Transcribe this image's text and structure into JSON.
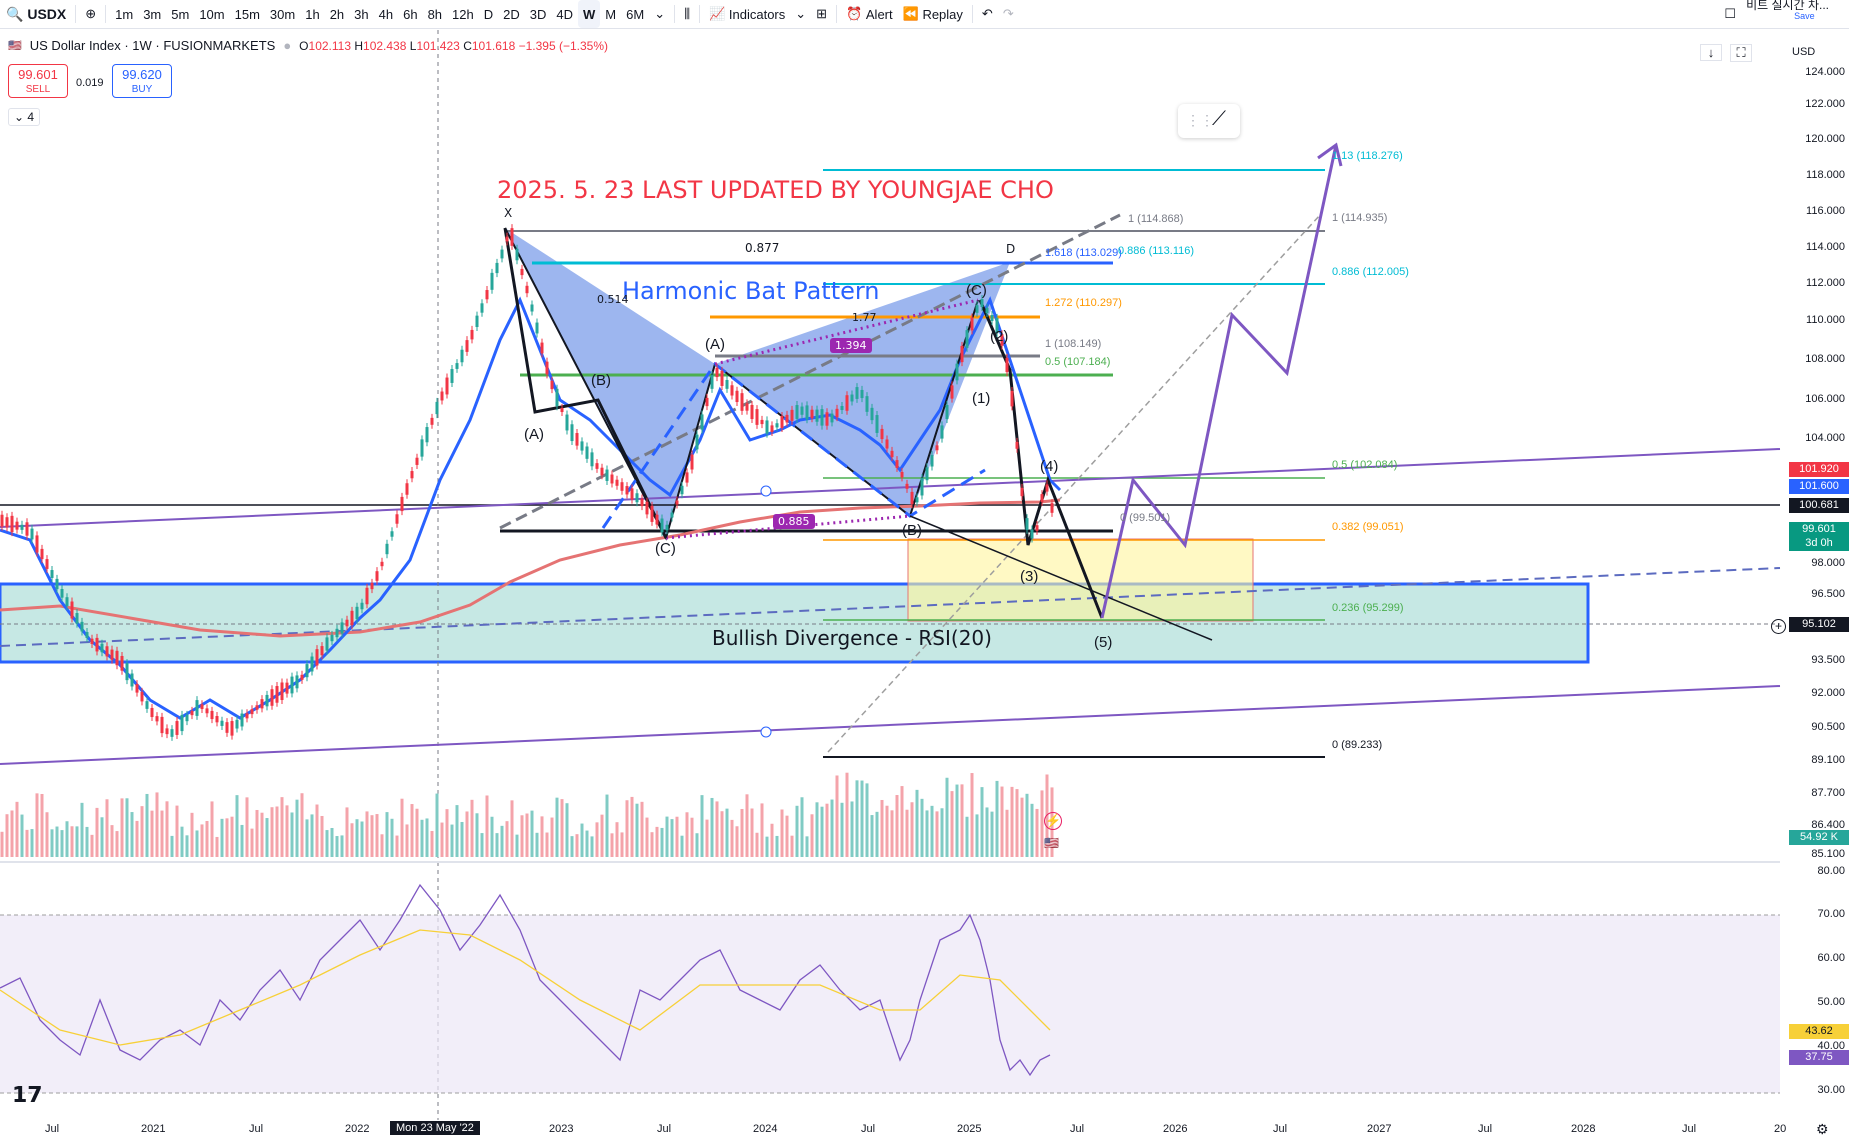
{
  "toolbar": {
    "symbol": "USDX",
    "intervals": [
      "1m",
      "3m",
      "5m",
      "10m",
      "15m",
      "30m",
      "1h",
      "2h",
      "3h",
      "4h",
      "6h",
      "8h",
      "12h",
      "D",
      "2D",
      "3D",
      "4D",
      "W",
      "M",
      "6M"
    ],
    "active_interval": "W",
    "indicators_label": "Indicators",
    "alert_label": "Alert",
    "replay_label": "Replay",
    "korean_label": "비트 실시간 차...",
    "save_label": "Save"
  },
  "legend": {
    "title": "US Dollar Index · 1W · FUSIONMARKETS",
    "o_label": "O",
    "o": "102.113",
    "h_label": "H",
    "h": "102.438",
    "l_label": "L",
    "l": "101.423",
    "c_label": "C",
    "c": "101.618",
    "change": "−1.395 (−1.35%)",
    "sell_price": "99.601",
    "sell_label": "SELL",
    "spread": "0.019",
    "buy_price": "99.620",
    "buy_label": "BUY",
    "collapse_count": "4"
  },
  "currency": "USD",
  "price_axis": [
    "124.000",
    "122.000",
    "120.000",
    "118.000",
    "116.000",
    "114.000",
    "112.000",
    "110.000",
    "108.000",
    "106.000",
    "104.000",
    "98.000",
    "96.500",
    "93.500",
    "92.000",
    "90.500",
    "89.100",
    "87.700",
    "86.400",
    "85.100"
  ],
  "price_tags": [
    {
      "label": "101.920",
      "color": "#f23645"
    },
    {
      "label": "101.600",
      "color": "#2962ff"
    },
    {
      "label": "100.681",
      "color": "#131722"
    },
    {
      "label": "99.601",
      "color": "#089981"
    },
    {
      "label": "3d 0h",
      "color": "#089981"
    },
    {
      "label": "95.102",
      "color": "#131722"
    },
    {
      "label": "54.92 K",
      "color": "#26a69a"
    }
  ],
  "rsi_axis": [
    "80.00",
    "70.00",
    "60.00",
    "50.00",
    "40.00",
    "30.00"
  ],
  "rsi_tags": [
    {
      "label": "43.62",
      "color": "#f7d038"
    },
    {
      "label": "37.75",
      "color": "#7e57c2"
    }
  ],
  "time_axis": [
    "Jul",
    "2021",
    "Jul",
    "2022",
    "Mon 23 May '22",
    "2023",
    "Jul",
    "2024",
    "Jul",
    "2025",
    "Jul",
    "2026",
    "Jul",
    "2027",
    "Jul",
    "2028",
    "Jul",
    "20"
  ],
  "annotations": {
    "headline": "2025. 5. 23 LAST UPDATED BY YOUNGJAE CHO",
    "pattern": "Harmonic Bat Pattern",
    "divergence": "Bullish Divergence - RSI(20)",
    "ratio_877": "0.877",
    "ratio_514": "0.514",
    "ratio_1394": "1.394",
    "ratio_885": "0.885",
    "ratio_177": "1.77",
    "point_x": "X",
    "point_d": "D"
  },
  "fib_levels": [
    {
      "label": "1.13 (118.276)",
      "color": "#00bcd4"
    },
    {
      "label": "1 (114.935)",
      "color": "#787b86"
    },
    {
      "label": "0.886 (112.005)",
      "color": "#00bcd4"
    },
    {
      "label": "0.5 (102.084)",
      "color": "#4caf50"
    },
    {
      "label": "0.382 (99.051)",
      "color": "#ff9800"
    },
    {
      "label": "0.236 (95.299)",
      "color": "#4caf50"
    },
    {
      "label": "0 (89.233)",
      "color": "#131722"
    },
    {
      "label": "1 (114.868)",
      "color": "#787b86"
    },
    {
      "label": "1.618 (113.029)",
      "color": "#2962ff"
    },
    {
      "label": "0.886 (113.116)",
      "color": "#00bcd4"
    },
    {
      "label": "1.272 (110.297)",
      "color": "#ff9800"
    },
    {
      "label": "1 (108.149)",
      "color": "#787b86"
    },
    {
      "label": "0.5 (107.184)",
      "color": "#4caf50"
    },
    {
      "label": "0 (99.501)",
      "color": "#787b86"
    }
  ],
  "waves": [
    "(A)",
    "(B)",
    "(A)",
    "(B)",
    "(C)",
    "(C)",
    "(1)",
    "(2)",
    "(3)",
    "(4)",
    "(5)"
  ],
  "colors": {
    "up": "#26a69a",
    "down": "#f23645",
    "ema": "#2962ff",
    "ma": "#f23645",
    "purple": "#7e57c2",
    "zone": "#80cbc4"
  }
}
